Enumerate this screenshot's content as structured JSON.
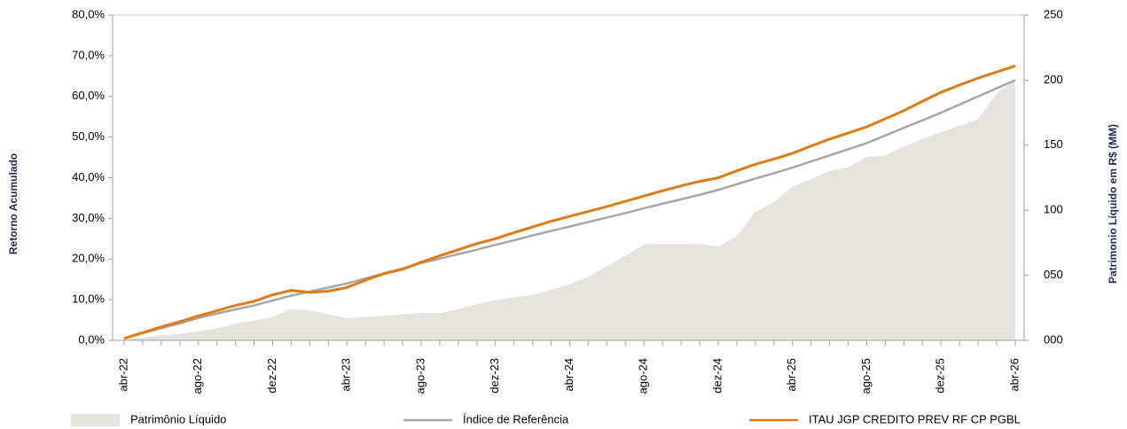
{
  "chart_data": {
    "type": "line",
    "y_label": "Retorno Acumulado",
    "y2_label": "Patrimonio Líquido em R$ (MM)",
    "categories": [
      "abr-22",
      null,
      null,
      null,
      "ago-22",
      null,
      null,
      null,
      "dez-22",
      null,
      null,
      null,
      "abr-23",
      null,
      null,
      null,
      "ago-23",
      null,
      null,
      null,
      "dez-23",
      null,
      null,
      null,
      "abr-24",
      null,
      null,
      null,
      "ago-24",
      null,
      null,
      null,
      "dez-24",
      null,
      null,
      null,
      "abr-25",
      null,
      null,
      null,
      "ago-25",
      null,
      null,
      null,
      "dez-25",
      null,
      null,
      null,
      "abr-26"
    ],
    "series": [
      {
        "name": "Patrimônio Líquido",
        "type": "area",
        "axis": "y2",
        "color": "#e6e3de",
        "values": [
          1,
          2,
          4,
          5,
          7,
          9,
          13,
          15,
          18,
          24,
          23,
          20,
          17,
          18,
          19,
          20,
          21,
          21,
          24,
          28,
          31,
          33,
          35,
          39,
          43,
          49,
          57,
          65,
          74,
          74,
          74,
          74,
          72,
          80,
          99,
          106,
          118,
          124,
          130,
          133,
          141,
          142,
          149,
          155,
          160,
          165,
          170,
          190,
          200
        ]
      },
      {
        "name": "Índice de Referência",
        "type": "line",
        "color": "#a6a6a6",
        "values": [
          0.5,
          1.8,
          3.0,
          4.2,
          5.5,
          6.6,
          7.6,
          8.6,
          9.8,
          11.0,
          12.0,
          13.0,
          14.0,
          15.2,
          16.5,
          17.7,
          19.0,
          20.1,
          21.2,
          22.3,
          23.5,
          24.6,
          25.8,
          26.9,
          28.0,
          29.1,
          30.2,
          31.3,
          32.5,
          33.6,
          34.7,
          35.8,
          37.0,
          38.4,
          39.8,
          41.1,
          42.5,
          44.0,
          45.5,
          47.0,
          48.5,
          50.4,
          52.3,
          54.1,
          56.0,
          58.0,
          60.0,
          62.0,
          64.0
        ]
      },
      {
        "name": "ITAU JGP CREDITO PREV RF CP PGBL",
        "type": "line",
        "color": "#e07a12",
        "values": [
          0.5,
          1.9,
          3.3,
          4.6,
          6.0,
          7.3,
          8.6,
          9.6,
          11.2,
          12.3,
          11.8,
          12.1,
          13.0,
          14.8,
          16.4,
          17.5,
          19.2,
          20.8,
          22.3,
          23.8,
          25.0,
          26.5,
          27.9,
          29.3,
          30.5,
          31.7,
          32.9,
          34.2,
          35.5,
          36.8,
          38.0,
          39.1,
          40.0,
          41.7,
          43.3,
          44.6,
          46.0,
          47.8,
          49.5,
          51.0,
          52.5,
          54.5,
          56.5,
          58.8,
          61.0,
          62.8,
          64.5,
          66.0,
          67.5
        ]
      }
    ],
    "ylim": [
      0,
      80
    ],
    "yticks": [
      {
        "value": 0,
        "label": "0,0%"
      },
      {
        "value": 10,
        "label": "10,0%"
      },
      {
        "value": 20,
        "label": "20,0%"
      },
      {
        "value": 30,
        "label": "30,0%"
      },
      {
        "value": 40,
        "label": "40,0%"
      },
      {
        "value": 50,
        "label": "50,0%"
      },
      {
        "value": 60,
        "label": "60,0%"
      },
      {
        "value": 70,
        "label": "70,0%"
      },
      {
        "value": 80,
        "label": "80,0%"
      }
    ],
    "y2lim": [
      0,
      250
    ],
    "y2ticks": [
      {
        "value": 0,
        "label": "000"
      },
      {
        "value": 50,
        "label": "050"
      },
      100,
      150,
      200,
      250
    ],
    "grid": false,
    "legend": "bottom"
  }
}
